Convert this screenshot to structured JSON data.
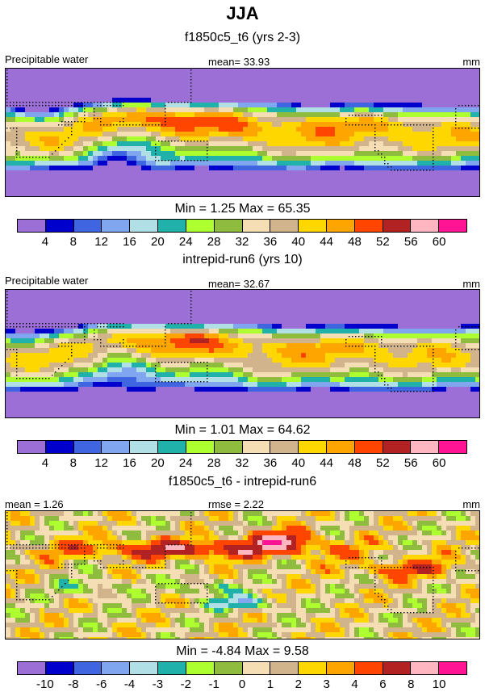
{
  "chart_data": {
    "type": "heatmap",
    "title": "JJA",
    "field": "Precipitable water",
    "units": "mm",
    "panels": [
      {
        "subtitle": "f1850c5_t6 (yrs 2-3)",
        "left_label": "Precipitable water",
        "mean_label": "mean=  33.93",
        "units": "mm",
        "stats": "Min =   1.25 Max =  65.35",
        "min": 1.25,
        "max": 65.35,
        "mean": 33.93,
        "levels": [
          "4",
          "8",
          "12",
          "16",
          "20",
          "24",
          "28",
          "32",
          "36",
          "40",
          "44",
          "48",
          "52",
          "56",
          "60"
        ]
      },
      {
        "subtitle": "intrepid-run6 (yrs 10)",
        "left_label": "Precipitable water",
        "mean_label": "mean=  32.67",
        "units": "mm",
        "stats": "Min =   1.01 Max =  64.62",
        "min": 1.01,
        "max": 64.62,
        "mean": 32.67,
        "levels": [
          "4",
          "8",
          "12",
          "16",
          "20",
          "24",
          "28",
          "32",
          "36",
          "40",
          "44",
          "48",
          "52",
          "56",
          "60"
        ]
      },
      {
        "subtitle": "f1850c5_t6 - intrepid-run6",
        "left_label": "mean =   1.26",
        "mean_label": "rmse =   2.22",
        "units": "mm",
        "stats": "Min =  -4.84 Max =   9.58",
        "min": -4.84,
        "max": 9.58,
        "mean": 1.26,
        "rmse": 2.22,
        "levels": [
          "-10",
          "-8",
          "-6",
          "-4",
          "-3",
          "-2",
          "-1",
          "0",
          "1",
          "2",
          "3",
          "4",
          "6",
          "8",
          "10"
        ]
      }
    ],
    "colors": [
      "#9b6fd6",
      "#0000cd",
      "#3f66e0",
      "#7fa6ee",
      "#b0e0e6",
      "#20b2aa",
      "#adff2f",
      "#8fbc3f",
      "#f5deb3",
      "#d2b48c",
      "#ffd700",
      "#ffa500",
      "#ff4500",
      "#b22222",
      "#ffb6c1",
      "#ff1493"
    ]
  }
}
